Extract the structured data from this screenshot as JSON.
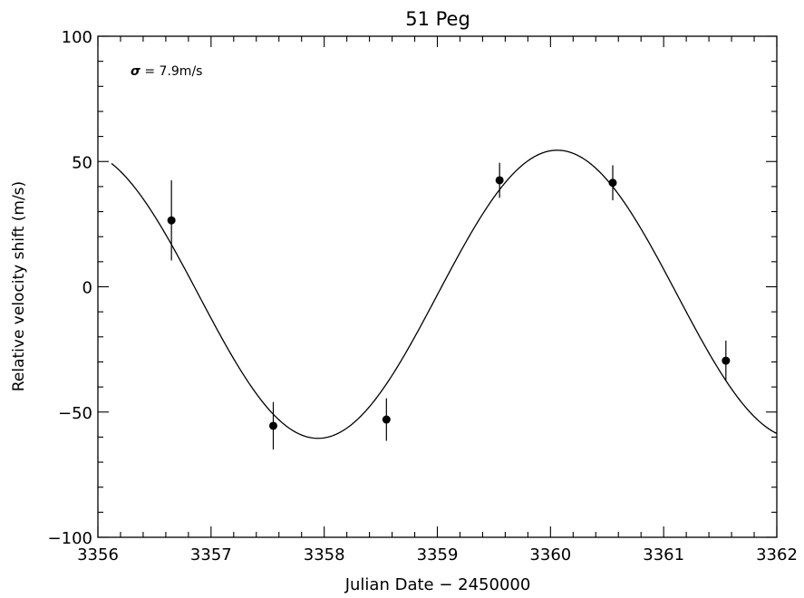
{
  "chart_data": {
    "type": "scatter",
    "title": "51 Peg",
    "xlabel": "Julian Date − 2450000",
    "ylabel": "Relative velocity shift (m/s)",
    "xlim": [
      3356,
      3362
    ],
    "ylim": [
      -100,
      100
    ],
    "x_ticks": [
      3356,
      3357,
      3358,
      3359,
      3360,
      3361,
      3362
    ],
    "x_tick_labels": [
      "3356",
      "3357",
      "3358",
      "3359",
      "3360",
      "3361",
      "3362"
    ],
    "y_ticks": [
      -100,
      -50,
      0,
      50,
      100
    ],
    "y_tick_labels": [
      "−100",
      "−50",
      "0",
      "50",
      "100"
    ],
    "annotation": {
      "symbol": "σ",
      "text": " = 7.9m/s"
    },
    "grid": false,
    "legend": "none",
    "series": [
      {
        "kind": "points_with_errorbars",
        "x": [
          3356.65,
          3357.55,
          3358.55,
          3359.55,
          3360.55,
          3361.55
        ],
        "y": [
          26.5,
          -55.5,
          -53.0,
          42.5,
          41.5,
          -29.5
        ],
        "yerr": [
          16.0,
          9.5,
          8.5,
          7.0,
          7.0,
          8.0
        ]
      },
      {
        "kind": "fit_curve",
        "model": "sinusoid",
        "amplitude": 57.5,
        "offset": -3.0,
        "period": 4.23,
        "peak_x": 3360.06,
        "x_range": [
          3356.12,
          3362
        ]
      }
    ]
  }
}
